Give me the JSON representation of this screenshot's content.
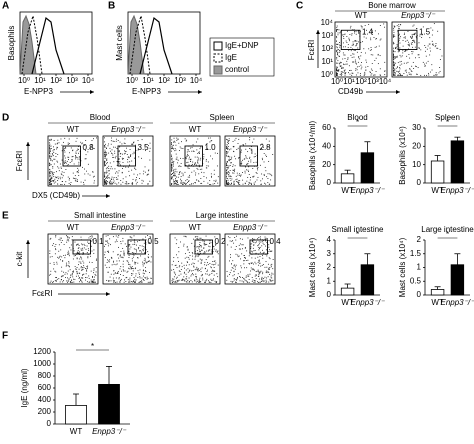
{
  "panel_letters": [
    "A",
    "B",
    "C",
    "D",
    "E",
    "F"
  ],
  "histograms": [
    {
      "ylabel": "Basophils",
      "xlabel": "E-NPP3"
    },
    {
      "ylabel": "Mast cells",
      "xlabel": "E-NPP3"
    }
  ],
  "hist_xticks": [
    "10⁰",
    "10¹",
    "10²",
    "10³",
    "10⁴"
  ],
  "legend": [
    "IgE+DNP",
    "IgE",
    "control"
  ],
  "flow_ticks": [
    "10⁰",
    "10¹",
    "10²",
    "10³",
    "10⁴"
  ],
  "flow_c": {
    "title": "Bone marrow",
    "ylabel": "FcεRI",
    "xlabel": "CD49b",
    "groups": [
      {
        "name": "WT",
        "gate": "1.4"
      },
      {
        "name": "Enpp3⁻/⁻",
        "gate": "1.5"
      }
    ]
  },
  "flow_d": {
    "ylabel": "FcεRI",
    "xlabel": "DX5 (CD49b)",
    "tissues": [
      {
        "title": "Blood",
        "groups": [
          {
            "name": "WT",
            "gate": "0.8"
          },
          {
            "name": "Enpp3⁻/⁻",
            "gate": "3.5"
          }
        ]
      },
      {
        "title": "Spleen",
        "groups": [
          {
            "name": "WT",
            "gate": "1.0"
          },
          {
            "name": "Enpp3⁻/⁻",
            "gate": "2.8"
          }
        ]
      }
    ]
  },
  "flow_e": {
    "ylabel": "c-kit",
    "xlabel": "FcεRI",
    "tissues": [
      {
        "title": "Small intestine",
        "groups": [
          {
            "name": "WT",
            "gate": "0.1"
          },
          {
            "name": "Enpp3⁻/⁻",
            "gate": "0.5"
          }
        ]
      },
      {
        "title": "Large intestine",
        "groups": [
          {
            "name": "WT",
            "gate": "0.2"
          },
          {
            "name": "Enpp3⁻/⁻",
            "gate": "0.4"
          }
        ]
      }
    ]
  },
  "chart_data": [
    {
      "type": "bar",
      "title": "Blood",
      "ylabel": "Basophils (x10⁴/ml)",
      "categories": [
        "WT",
        "Enpp3⁻/⁻"
      ],
      "values": [
        10,
        33
      ],
      "errors": [
        4,
        12
      ],
      "colors": [
        "#ffffff",
        "#000000"
      ],
      "ylim": [
        0,
        60
      ],
      "yticks": [
        0,
        20,
        40,
        60
      ],
      "significance": "*"
    },
    {
      "type": "bar",
      "title": "Spleen",
      "ylabel": "Basophils (x10⁴)",
      "categories": [
        "WT",
        "Enpp3⁻/⁻"
      ],
      "values": [
        12,
        23
      ],
      "errors": [
        3,
        2
      ],
      "colors": [
        "#ffffff",
        "#000000"
      ],
      "ylim": [
        0,
        30
      ],
      "yticks": [
        0,
        10,
        20,
        30
      ],
      "significance": "*"
    },
    {
      "type": "bar",
      "title": "Small intestine",
      "ylabel": "Mast cells (x10⁴)",
      "categories": [
        "WT",
        "Enpp3⁻/⁻"
      ],
      "values": [
        0.5,
        2.2
      ],
      "errors": [
        0.3,
        0.8
      ],
      "colors": [
        "#ffffff",
        "#000000"
      ],
      "ylim": [
        0,
        4
      ],
      "yticks": [
        0,
        1,
        2,
        3,
        4
      ],
      "significance": "*"
    },
    {
      "type": "bar",
      "title": "Large intestine",
      "ylabel": "Mast cells (x10⁴)",
      "categories": [
        "WT",
        "Enpp3⁻/⁻"
      ],
      "values": [
        0.2,
        1.1
      ],
      "errors": [
        0.1,
        0.4
      ],
      "colors": [
        "#ffffff",
        "#000000"
      ],
      "ylim": [
        0,
        2
      ],
      "yticks": [
        0,
        0.5,
        1,
        1.5,
        2
      ],
      "significance": "*"
    },
    {
      "type": "bar",
      "ylabel": "IgE (ng/ml)",
      "categories": [
        "WT",
        "Enpp3⁻/⁻"
      ],
      "values": [
        310,
        660
      ],
      "errors": [
        190,
        300
      ],
      "colors": [
        "#ffffff",
        "#000000"
      ],
      "ylim": [
        0,
        1200
      ],
      "yticks": [
        0,
        200,
        400,
        600,
        800,
        1000,
        1200
      ],
      "significance": "*"
    }
  ]
}
